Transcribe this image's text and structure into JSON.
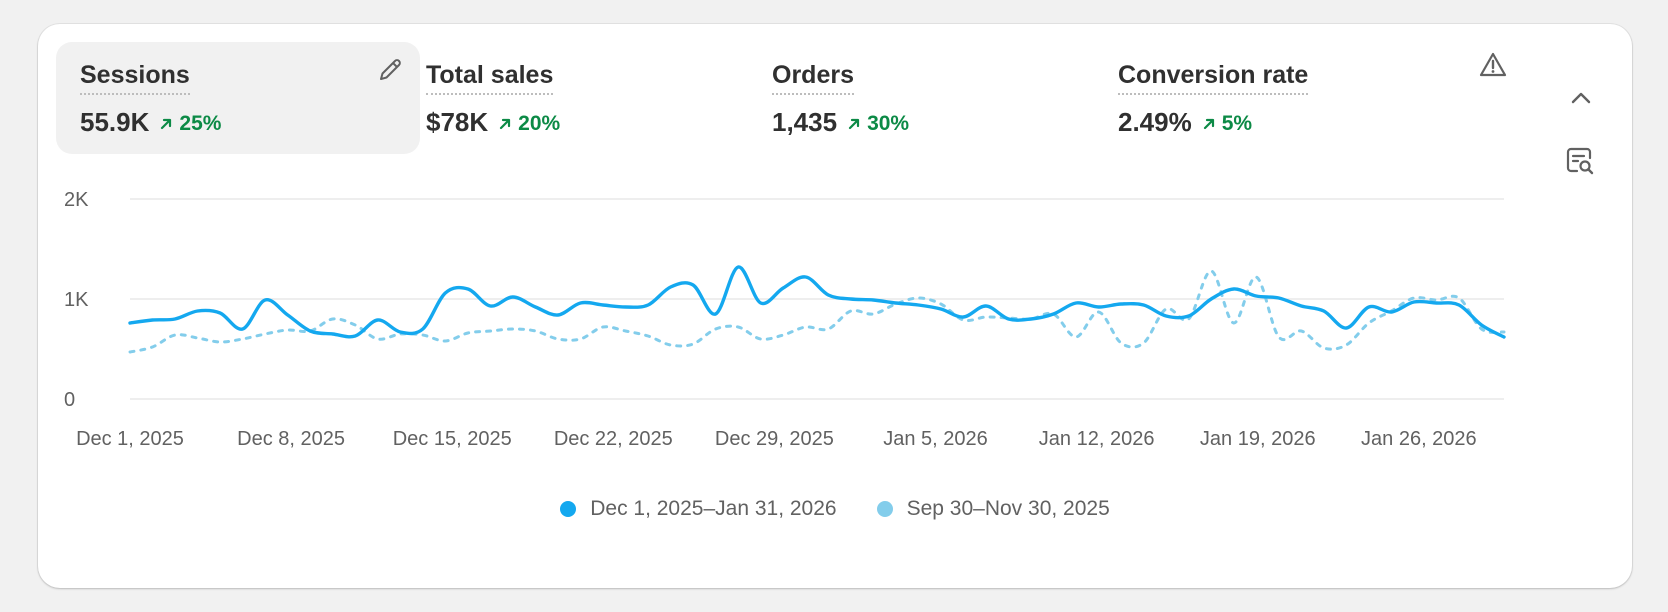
{
  "metrics": [
    {
      "label": "Sessions",
      "value": "55.9K",
      "change": "25%"
    },
    {
      "label": "Total sales",
      "value": "$78K",
      "change": "20%"
    },
    {
      "label": "Orders",
      "value": "1,435",
      "change": "30%"
    },
    {
      "label": "Conversion rate",
      "value": "2.49%",
      "change": "5%"
    }
  ],
  "icons": {
    "edit": "pencil-icon",
    "warning": "warning-triangle-icon",
    "collapse": "chevron-up-icon",
    "explore": "explore-data-icon",
    "trend": "arrow-up-right-icon"
  },
  "colors": {
    "current": "#14a8ef",
    "previous": "#83cdeb",
    "positive_change": "#0c8a46",
    "grid": "#e3e3e3",
    "axis_text": "#616161"
  },
  "chart_data": {
    "type": "line",
    "metric": "Sessions",
    "y_ticks": [
      "0",
      "1K",
      "2K"
    ],
    "ylim": [
      0,
      2000
    ],
    "x_ticks": [
      "Dec 1, 2025",
      "Dec 8, 2025",
      "Dec 15, 2025",
      "Dec 22, 2025",
      "Dec 29, 2025",
      "Jan 5, 2026",
      "Jan 12, 2026",
      "Jan 19, 2026",
      "Jan 26, 2026"
    ],
    "x_tick_days": [
      0,
      7,
      14,
      21,
      28,
      35,
      42,
      49,
      56
    ],
    "grid": true,
    "legend_position": "bottom-center",
    "series": [
      {
        "name": "Dec 1, 2025–Jan 31, 2026",
        "style": "solid",
        "values": [
          760,
          790,
          800,
          880,
          860,
          700,
          990,
          840,
          680,
          650,
          630,
          790,
          670,
          700,
          1060,
          1100,
          930,
          1020,
          920,
          840,
          960,
          940,
          920,
          940,
          1120,
          1140,
          850,
          1320,
          960,
          1110,
          1220,
          1040,
          1000,
          990,
          960,
          940,
          900,
          820,
          930,
          800,
          800,
          850,
          960,
          920,
          950,
          940,
          830,
          830,
          1000,
          1100,
          1030,
          1010,
          930,
          880,
          710,
          920,
          870,
          970,
          960,
          940,
          740,
          620
        ]
      },
      {
        "name": "Sep 30–Nov 30, 2025",
        "style": "dashed",
        "values": [
          470,
          520,
          640,
          610,
          570,
          600,
          650,
          690,
          680,
          800,
          740,
          600,
          650,
          640,
          580,
          660,
          680,
          700,
          680,
          600,
          600,
          720,
          680,
          630,
          540,
          550,
          700,
          720,
          600,
          640,
          720,
          700,
          880,
          850,
          950,
          1010,
          950,
          790,
          820,
          810,
          800,
          850,
          620,
          870,
          560,
          560,
          900,
          800,
          1280,
          760,
          1220,
          620,
          680,
          510,
          540,
          760,
          880,
          1010,
          990,
          1010,
          700,
          670
        ]
      }
    ]
  }
}
